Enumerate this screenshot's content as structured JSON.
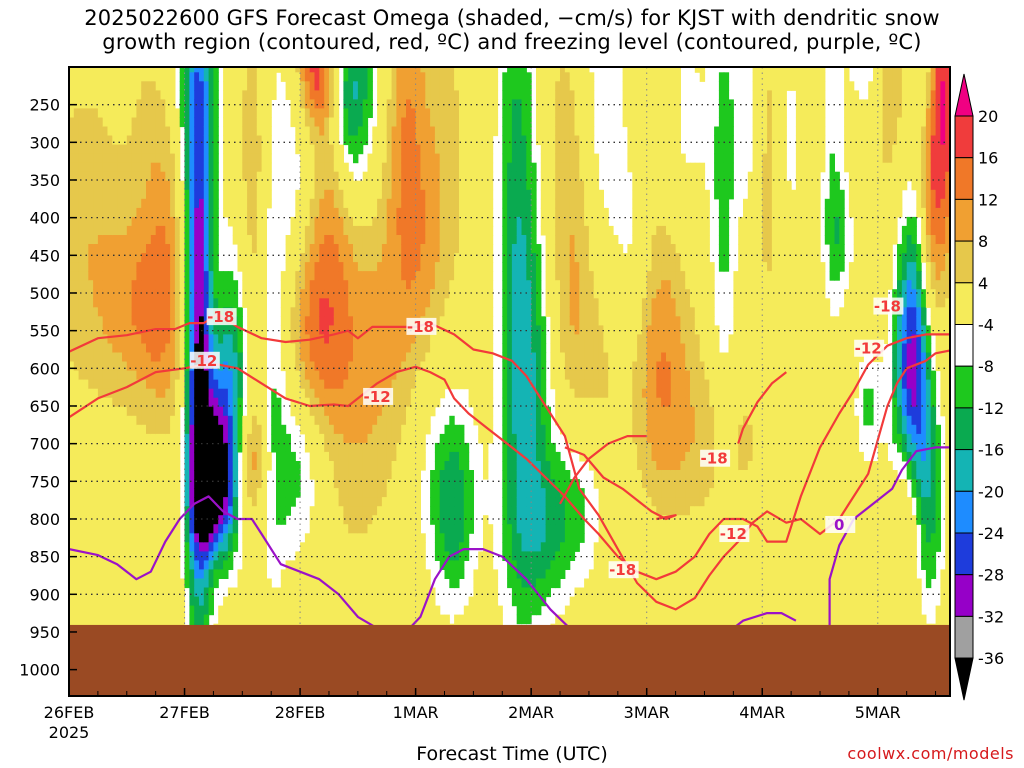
{
  "title": {
    "line1": "2025022600 GFS Forecast Omega (shaded, −cm/s) for KJST with dendritic snow",
    "line2": "growth region (contoured, red, ºC) and freezing level (contoured, purple, ºC)"
  },
  "credit": "coolwx.com/models",
  "colors": {
    "ground": "#9a4a23",
    "dendritic_contour": "#f23a3a",
    "freezing_contour": "#9b12c8",
    "grid": "#444444"
  },
  "chart_data": {
    "type": "heatmap",
    "xlabel": "Forecast Time (UTC)",
    "ylabel": "",
    "x_ticks": [
      "26FEB",
      "27FEB",
      "28FEB",
      "1MAR",
      "2MAR",
      "3MAR",
      "4MAR",
      "5MAR"
    ],
    "x_sublabel": "2025",
    "x_range_hours": [
      0,
      183
    ],
    "y_ticks": [
      250,
      300,
      350,
      400,
      450,
      500,
      550,
      600,
      650,
      700,
      750,
      800,
      850,
      900,
      950,
      1000
    ],
    "y_unit": "hPa",
    "y_range": [
      200,
      1035
    ],
    "grid": true,
    "colorbar": {
      "labels": [
        20,
        16,
        12,
        8,
        4,
        -4,
        -8,
        -12,
        -16,
        -20,
        -24,
        -28,
        -32,
        -36
      ],
      "colors": [
        "#f00082",
        "#f03c3c",
        "#f07828",
        "#f0a032",
        "#e6c84b",
        "#f5eb5a",
        "#ffffff",
        "#1ec81e",
        "#0aaa50",
        "#14b4b4",
        "#1e8cff",
        "#1e3cdc",
        "#9600c8",
        "#a0a0a0",
        "#000000"
      ]
    },
    "dendritic_contour_labels": [
      "-18",
      "-12"
    ],
    "freezing_contour_labels": [
      "0"
    ],
    "surface_pressure_hPa": 940
  }
}
